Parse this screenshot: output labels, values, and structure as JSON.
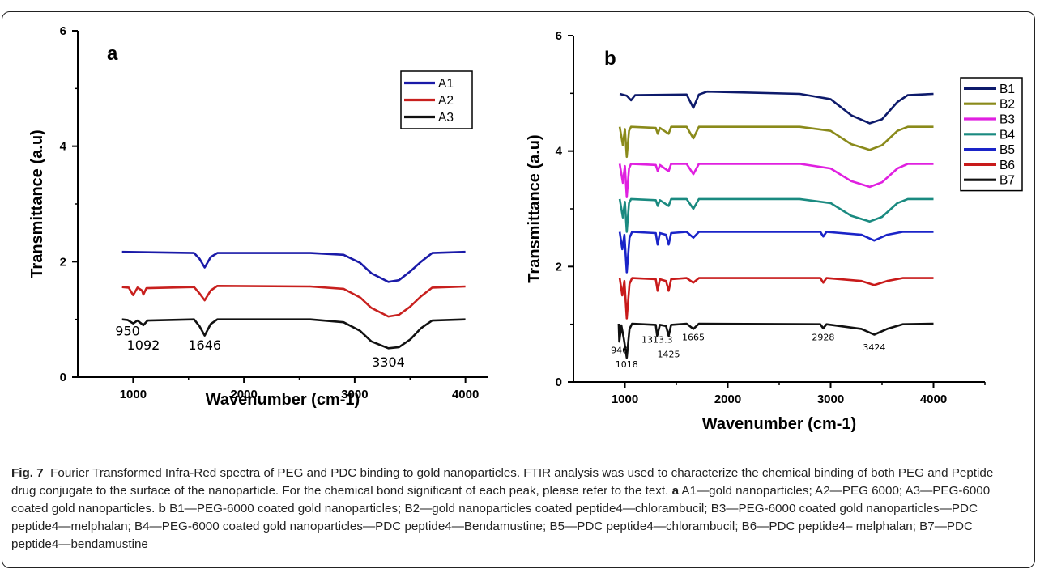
{
  "chart_data": [
    {
      "panel_label": "a",
      "type": "line",
      "xlabel": "Wavenumber (cm-1)",
      "ylabel": "Transmittance (a.u)",
      "xlim": [
        500,
        4200
      ],
      "ylim": [
        0,
        6
      ],
      "x_ticks": [
        1000,
        2000,
        3000,
        4000
      ],
      "y_ticks": [
        0,
        2,
        4,
        6
      ],
      "legend_position": "top-right",
      "series": [
        {
          "name": "A1",
          "color": "#1a1aa8",
          "points": [
            [
              900,
              2.17
            ],
            [
              1550,
              2.15
            ],
            [
              1600,
              2.05
            ],
            [
              1646,
              1.9
            ],
            [
              1700,
              2.08
            ],
            [
              1760,
              2.15
            ],
            [
              2600,
              2.15
            ],
            [
              2900,
              2.12
            ],
            [
              3050,
              1.98
            ],
            [
              3150,
              1.8
            ],
            [
              3304,
              1.65
            ],
            [
              3400,
              1.68
            ],
            [
              3500,
              1.83
            ],
            [
              3600,
              2.0
            ],
            [
              3700,
              2.15
            ],
            [
              4000,
              2.17
            ]
          ]
        },
        {
          "name": "A2",
          "color": "#c8201e",
          "points": [
            [
              900,
              1.56
            ],
            [
              960,
              1.55
            ],
            [
              1000,
              1.42
            ],
            [
              1040,
              1.55
            ],
            [
              1080,
              1.5
            ],
            [
              1092,
              1.43
            ],
            [
              1120,
              1.54
            ],
            [
              1550,
              1.56
            ],
            [
              1600,
              1.45
            ],
            [
              1646,
              1.33
            ],
            [
              1700,
              1.5
            ],
            [
              1760,
              1.58
            ],
            [
              2600,
              1.57
            ],
            [
              2900,
              1.53
            ],
            [
              3050,
              1.38
            ],
            [
              3150,
              1.2
            ],
            [
              3304,
              1.05
            ],
            [
              3400,
              1.08
            ],
            [
              3500,
              1.22
            ],
            [
              3600,
              1.4
            ],
            [
              3700,
              1.55
            ],
            [
              4000,
              1.57
            ]
          ]
        },
        {
          "name": "A3",
          "color": "#111111",
          "points": [
            [
              900,
              1.0
            ],
            [
              950,
              0.99
            ],
            [
              1000,
              0.93
            ],
            [
              1040,
              0.98
            ],
            [
              1092,
              0.9
            ],
            [
              1130,
              0.98
            ],
            [
              1550,
              1.0
            ],
            [
              1600,
              0.88
            ],
            [
              1646,
              0.72
            ],
            [
              1700,
              0.92
            ],
            [
              1760,
              1.0
            ],
            [
              2600,
              1.0
            ],
            [
              2900,
              0.95
            ],
            [
              3050,
              0.8
            ],
            [
              3150,
              0.62
            ],
            [
              3304,
              0.5
            ],
            [
              3400,
              0.52
            ],
            [
              3500,
              0.65
            ],
            [
              3600,
              0.85
            ],
            [
              3700,
              0.98
            ],
            [
              4000,
              1.0
            ]
          ]
        }
      ],
      "annotations": [
        {
          "text": "950",
          "x": 950,
          "y": 0.72
        },
        {
          "text": "1092",
          "x": 1092,
          "y": 0.48
        },
        {
          "text": "1646",
          "x": 1646,
          "y": 0.48
        },
        {
          "text": "3304",
          "x": 3304,
          "y": 0.18
        }
      ]
    },
    {
      "panel_label": "b",
      "type": "line",
      "xlabel": "Wavenumber (cm-1)",
      "ylabel": "Transmittance (a.u)",
      "xlim": [
        500,
        4500
      ],
      "ylim": [
        0,
        6
      ],
      "x_ticks": [
        1000,
        2000,
        3000,
        4000
      ],
      "y_ticks": [
        0,
        2,
        4,
        6
      ],
      "legend_position": "right",
      "series": [
        {
          "name": "B1",
          "color": "#0d1a6b",
          "base": 4.99,
          "points": [
            [
              950,
              4.99
            ],
            [
              1018,
              4.96
            ],
            [
              1060,
              4.88
            ],
            [
              1100,
              4.97
            ],
            [
              1600,
              4.98
            ],
            [
              1665,
              4.75
            ],
            [
              1720,
              4.98
            ],
            [
              1800,
              5.03
            ],
            [
              2700,
              4.99
            ],
            [
              3000,
              4.9
            ],
            [
              3200,
              4.62
            ],
            [
              3380,
              4.48
            ],
            [
              3500,
              4.55
            ],
            [
              3650,
              4.85
            ],
            [
              3750,
              4.97
            ],
            [
              4000,
              4.99
            ]
          ]
        },
        {
          "name": "B2",
          "color": "#8a8a1a",
          "base": 4.42,
          "points": [
            [
              950,
              4.42
            ],
            [
              980,
              4.1
            ],
            [
              1000,
              4.38
            ],
            [
              1018,
              3.9
            ],
            [
              1040,
              4.35
            ],
            [
              1060,
              4.42
            ],
            [
              1300,
              4.4
            ],
            [
              1320,
              4.3
            ],
            [
              1340,
              4.4
            ],
            [
              1425,
              4.3
            ],
            [
              1450,
              4.42
            ],
            [
              1600,
              4.42
            ],
            [
              1665,
              4.22
            ],
            [
              1720,
              4.42
            ],
            [
              2700,
              4.42
            ],
            [
              3000,
              4.35
            ],
            [
              3200,
              4.12
            ],
            [
              3380,
              4.02
            ],
            [
              3500,
              4.1
            ],
            [
              3650,
              4.35
            ],
            [
              3750,
              4.42
            ],
            [
              4000,
              4.42
            ]
          ]
        },
        {
          "name": "B3",
          "color": "#e020e0",
          "base": 3.78,
          "points": [
            [
              950,
              3.78
            ],
            [
              980,
              3.45
            ],
            [
              1000,
              3.74
            ],
            [
              1018,
              3.2
            ],
            [
              1040,
              3.7
            ],
            [
              1060,
              3.78
            ],
            [
              1300,
              3.76
            ],
            [
              1320,
              3.65
            ],
            [
              1340,
              3.76
            ],
            [
              1425,
              3.65
            ],
            [
              1450,
              3.78
            ],
            [
              1600,
              3.78
            ],
            [
              1665,
              3.6
            ],
            [
              1720,
              3.78
            ],
            [
              2700,
              3.78
            ],
            [
              3000,
              3.7
            ],
            [
              3200,
              3.48
            ],
            [
              3380,
              3.38
            ],
            [
              3500,
              3.46
            ],
            [
              3650,
              3.7
            ],
            [
              3750,
              3.78
            ],
            [
              4000,
              3.78
            ]
          ]
        },
        {
          "name": "B4",
          "color": "#1a8a80",
          "base": 3.17,
          "points": [
            [
              950,
              3.17
            ],
            [
              980,
              2.85
            ],
            [
              1000,
              3.12
            ],
            [
              1018,
              2.6
            ],
            [
              1040,
              3.1
            ],
            [
              1060,
              3.17
            ],
            [
              1300,
              3.15
            ],
            [
              1320,
              3.05
            ],
            [
              1340,
              3.15
            ],
            [
              1425,
              3.05
            ],
            [
              1450,
              3.17
            ],
            [
              1600,
              3.17
            ],
            [
              1665,
              3.0
            ],
            [
              1720,
              3.17
            ],
            [
              2700,
              3.17
            ],
            [
              3000,
              3.1
            ],
            [
              3200,
              2.88
            ],
            [
              3380,
              2.78
            ],
            [
              3500,
              2.86
            ],
            [
              3650,
              3.1
            ],
            [
              3750,
              3.17
            ],
            [
              4000,
              3.17
            ]
          ]
        },
        {
          "name": "B5",
          "color": "#1a24c8",
          "base": 2.6,
          "points": [
            [
              950,
              2.6
            ],
            [
              975,
              2.3
            ],
            [
              995,
              2.55
            ],
            [
              1018,
              1.9
            ],
            [
              1045,
              2.5
            ],
            [
              1070,
              2.6
            ],
            [
              1300,
              2.58
            ],
            [
              1318,
              2.38
            ],
            [
              1340,
              2.58
            ],
            [
              1400,
              2.55
            ],
            [
              1425,
              2.38
            ],
            [
              1450,
              2.58
            ],
            [
              1600,
              2.6
            ],
            [
              1665,
              2.5
            ],
            [
              1720,
              2.6
            ],
            [
              2900,
              2.6
            ],
            [
              2928,
              2.52
            ],
            [
              2960,
              2.6
            ],
            [
              3300,
              2.55
            ],
            [
              3424,
              2.45
            ],
            [
              3550,
              2.55
            ],
            [
              3700,
              2.6
            ],
            [
              4000,
              2.6
            ]
          ]
        },
        {
          "name": "B6",
          "color": "#c81a1a",
          "base": 1.8,
          "points": [
            [
              950,
              1.8
            ],
            [
              975,
              1.5
            ],
            [
              995,
              1.75
            ],
            [
              1018,
              1.1
            ],
            [
              1045,
              1.7
            ],
            [
              1070,
              1.8
            ],
            [
              1300,
              1.78
            ],
            [
              1318,
              1.58
            ],
            [
              1340,
              1.78
            ],
            [
              1400,
              1.75
            ],
            [
              1425,
              1.58
            ],
            [
              1450,
              1.78
            ],
            [
              1600,
              1.8
            ],
            [
              1665,
              1.72
            ],
            [
              1720,
              1.8
            ],
            [
              2900,
              1.8
            ],
            [
              2928,
              1.72
            ],
            [
              2960,
              1.8
            ],
            [
              3300,
              1.75
            ],
            [
              3424,
              1.68
            ],
            [
              3550,
              1.75
            ],
            [
              3700,
              1.8
            ],
            [
              4000,
              1.8
            ]
          ]
        },
        {
          "name": "B7",
          "color": "#111111",
          "base": 1.01,
          "points": [
            [
              940,
              1.01
            ],
            [
              946,
              0.7
            ],
            [
              965,
              0.98
            ],
            [
              990,
              0.75
            ],
            [
              1018,
              0.42
            ],
            [
              1045,
              0.92
            ],
            [
              1070,
              1.01
            ],
            [
              1300,
              0.99
            ],
            [
              1313,
              0.8
            ],
            [
              1340,
              0.99
            ],
            [
              1400,
              0.97
            ],
            [
              1425,
              0.8
            ],
            [
              1450,
              0.99
            ],
            [
              1600,
              1.01
            ],
            [
              1665,
              0.92
            ],
            [
              1720,
              1.01
            ],
            [
              2900,
              1.0
            ],
            [
              2928,
              0.93
            ],
            [
              2960,
              1.0
            ],
            [
              3300,
              0.92
            ],
            [
              3424,
              0.82
            ],
            [
              3550,
              0.92
            ],
            [
              3700,
              1.0
            ],
            [
              4000,
              1.01
            ]
          ]
        }
      ],
      "annotations": [
        {
          "text": "946",
          "x": 946,
          "y": 0.5
        },
        {
          "text": "1313.3",
          "x": 1313,
          "y": 0.68
        },
        {
          "text": "1665",
          "x": 1665,
          "y": 0.72
        },
        {
          "text": "1018",
          "x": 1018,
          "y": 0.25
        },
        {
          "text": "1425",
          "x": 1425,
          "y": 0.43
        },
        {
          "text": "2928",
          "x": 2928,
          "y": 0.72
        },
        {
          "text": "3424",
          "x": 3424,
          "y": 0.55
        }
      ]
    }
  ],
  "caption": {
    "fig_label": "Fig. 7",
    "title": "Fourier Transformed Infra-Red spectra of PEG and PDC binding to gold nanoparticles. FTIR analysis was used to characterize the chemical binding of both PEG and Peptide drug conjugate to the surface of the nanoparticle. For the chemical bond significant of each peak, please refer to the text.",
    "part_a_label": "a",
    "part_a_text": "A1—gold nanoparticles; A2—PEG 6000; A3—PEG-6000 coated gold nanoparticles.",
    "part_b_label": "b",
    "part_b_text": "B1—PEG-6000 coated gold nanoparticles; B2—gold nanoparticles coated peptide4—chlorambucil; B3—PEG-6000 coated gold nanoparticles—PDC peptide4—melphalan; B4—PEG-6000 coated gold nanoparticles—PDC peptide4—Bendamustine; B5—PDC peptide4—chlorambucil; B6—PDC peptide4– melphalan; B7—PDC peptide4—bendamustine"
  }
}
